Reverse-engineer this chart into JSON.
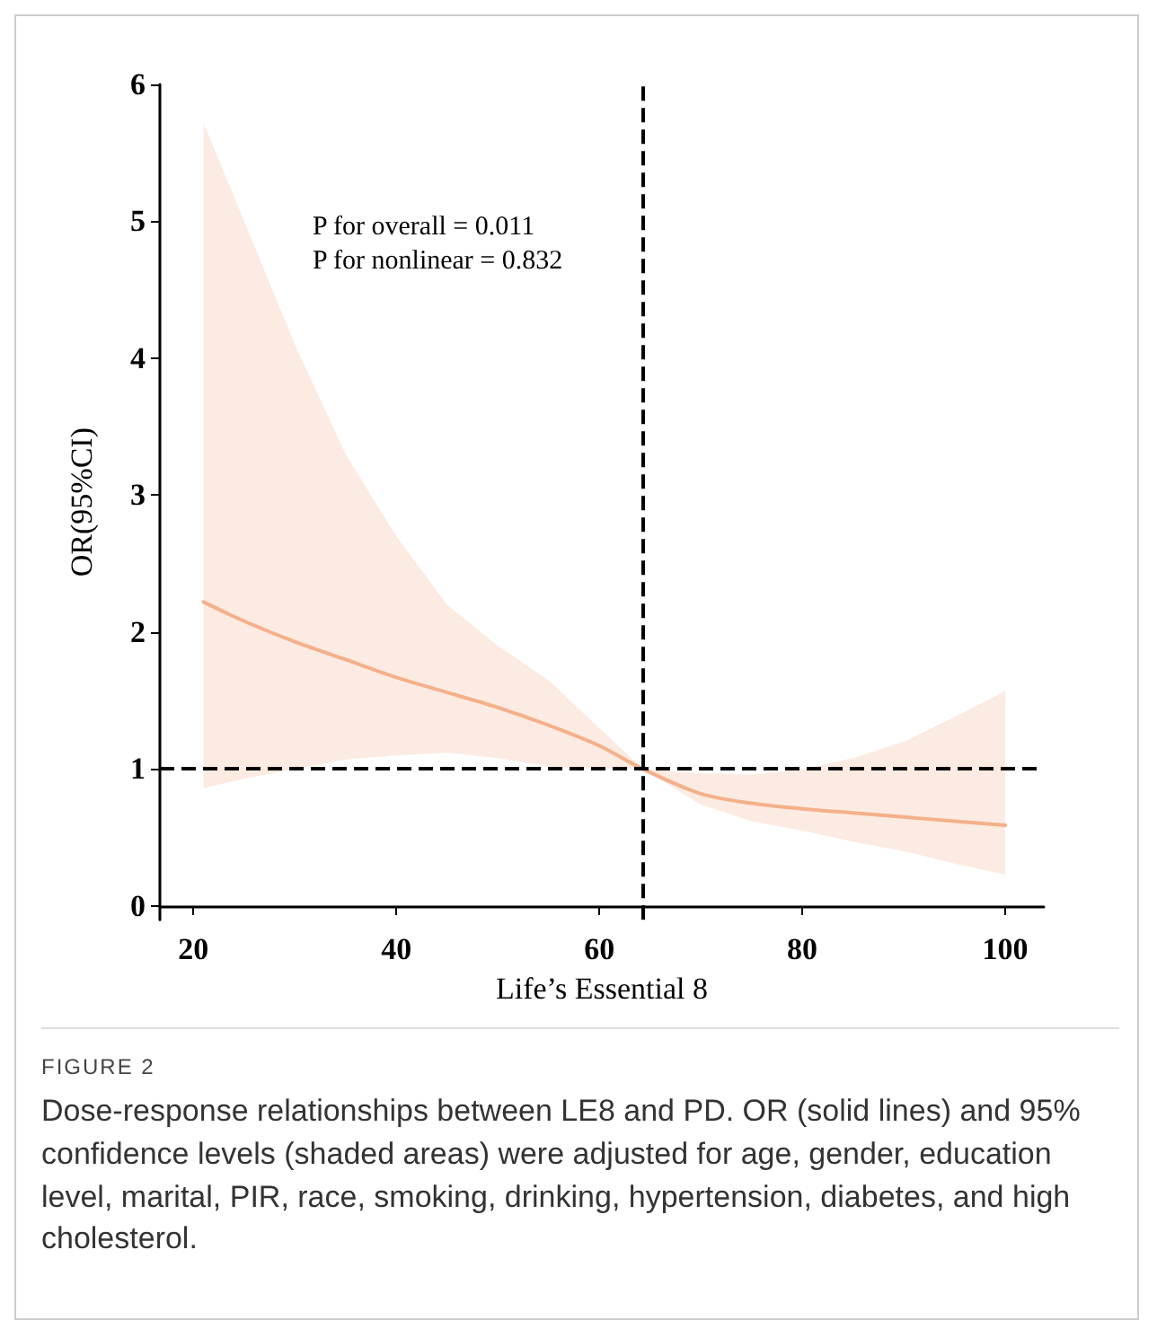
{
  "chart_data": {
    "type": "line",
    "title": "FIGURE 2",
    "subtitle": "Dose-response relationships between LE8 and PD. OR (solid lines) and 95% confidence levels (shaded areas) were adjusted for age, gender, education level, marital, PIR, race, smoking, drinking, hypertension, diabetes, and high cholesterol.",
    "xlabel": "Life’s Essential 8",
    "ylabel": "OR(95%CI)",
    "annotations": [
      "P for overall = 0.011",
      "P for nonlinear = 0.832"
    ],
    "x": [
      21,
      25,
      30,
      35,
      40,
      45,
      50,
      55,
      60,
      64.3,
      70,
      75,
      80,
      85,
      90,
      95,
      100
    ],
    "series": [
      {
        "color": "#f4b08a",
        "values": [
          2.22,
          2.08,
          1.93,
          1.8,
          1.67,
          1.56,
          1.45,
          1.32,
          1.17,
          1.0,
          0.82,
          0.75,
          0.71,
          0.68,
          0.65,
          0.62,
          0.59
        ],
        "upper": [
          5.72,
          5.0,
          4.1,
          3.3,
          2.7,
          2.2,
          1.9,
          1.65,
          1.3,
          1.0,
          0.97,
          0.96,
          1.0,
          1.08,
          1.2,
          1.38,
          1.57
        ],
        "lower": [
          0.86,
          0.93,
          1.0,
          1.07,
          1.1,
          1.12,
          1.08,
          1.02,
          1.0,
          1.0,
          0.74,
          0.62,
          0.55,
          0.47,
          0.4,
          0.31,
          0.23
        ]
      }
    ],
    "xlim": [
      16.7,
      103.8
    ],
    "ylim": [
      -0.1,
      6
    ],
    "xticks": [
      20,
      40,
      60,
      80,
      100
    ],
    "yticks": [
      0,
      1,
      2,
      3,
      4,
      5,
      6
    ],
    "ref_lines": [
      {
        "axis": "y",
        "value": 1,
        "color": "#000000",
        "line_style": "dashed"
      },
      {
        "axis": "x",
        "value": 64.3,
        "color": "#000000",
        "line_style": "dashed"
      }
    ],
    "grid": false,
    "marker": "none",
    "line_style": "solid"
  }
}
